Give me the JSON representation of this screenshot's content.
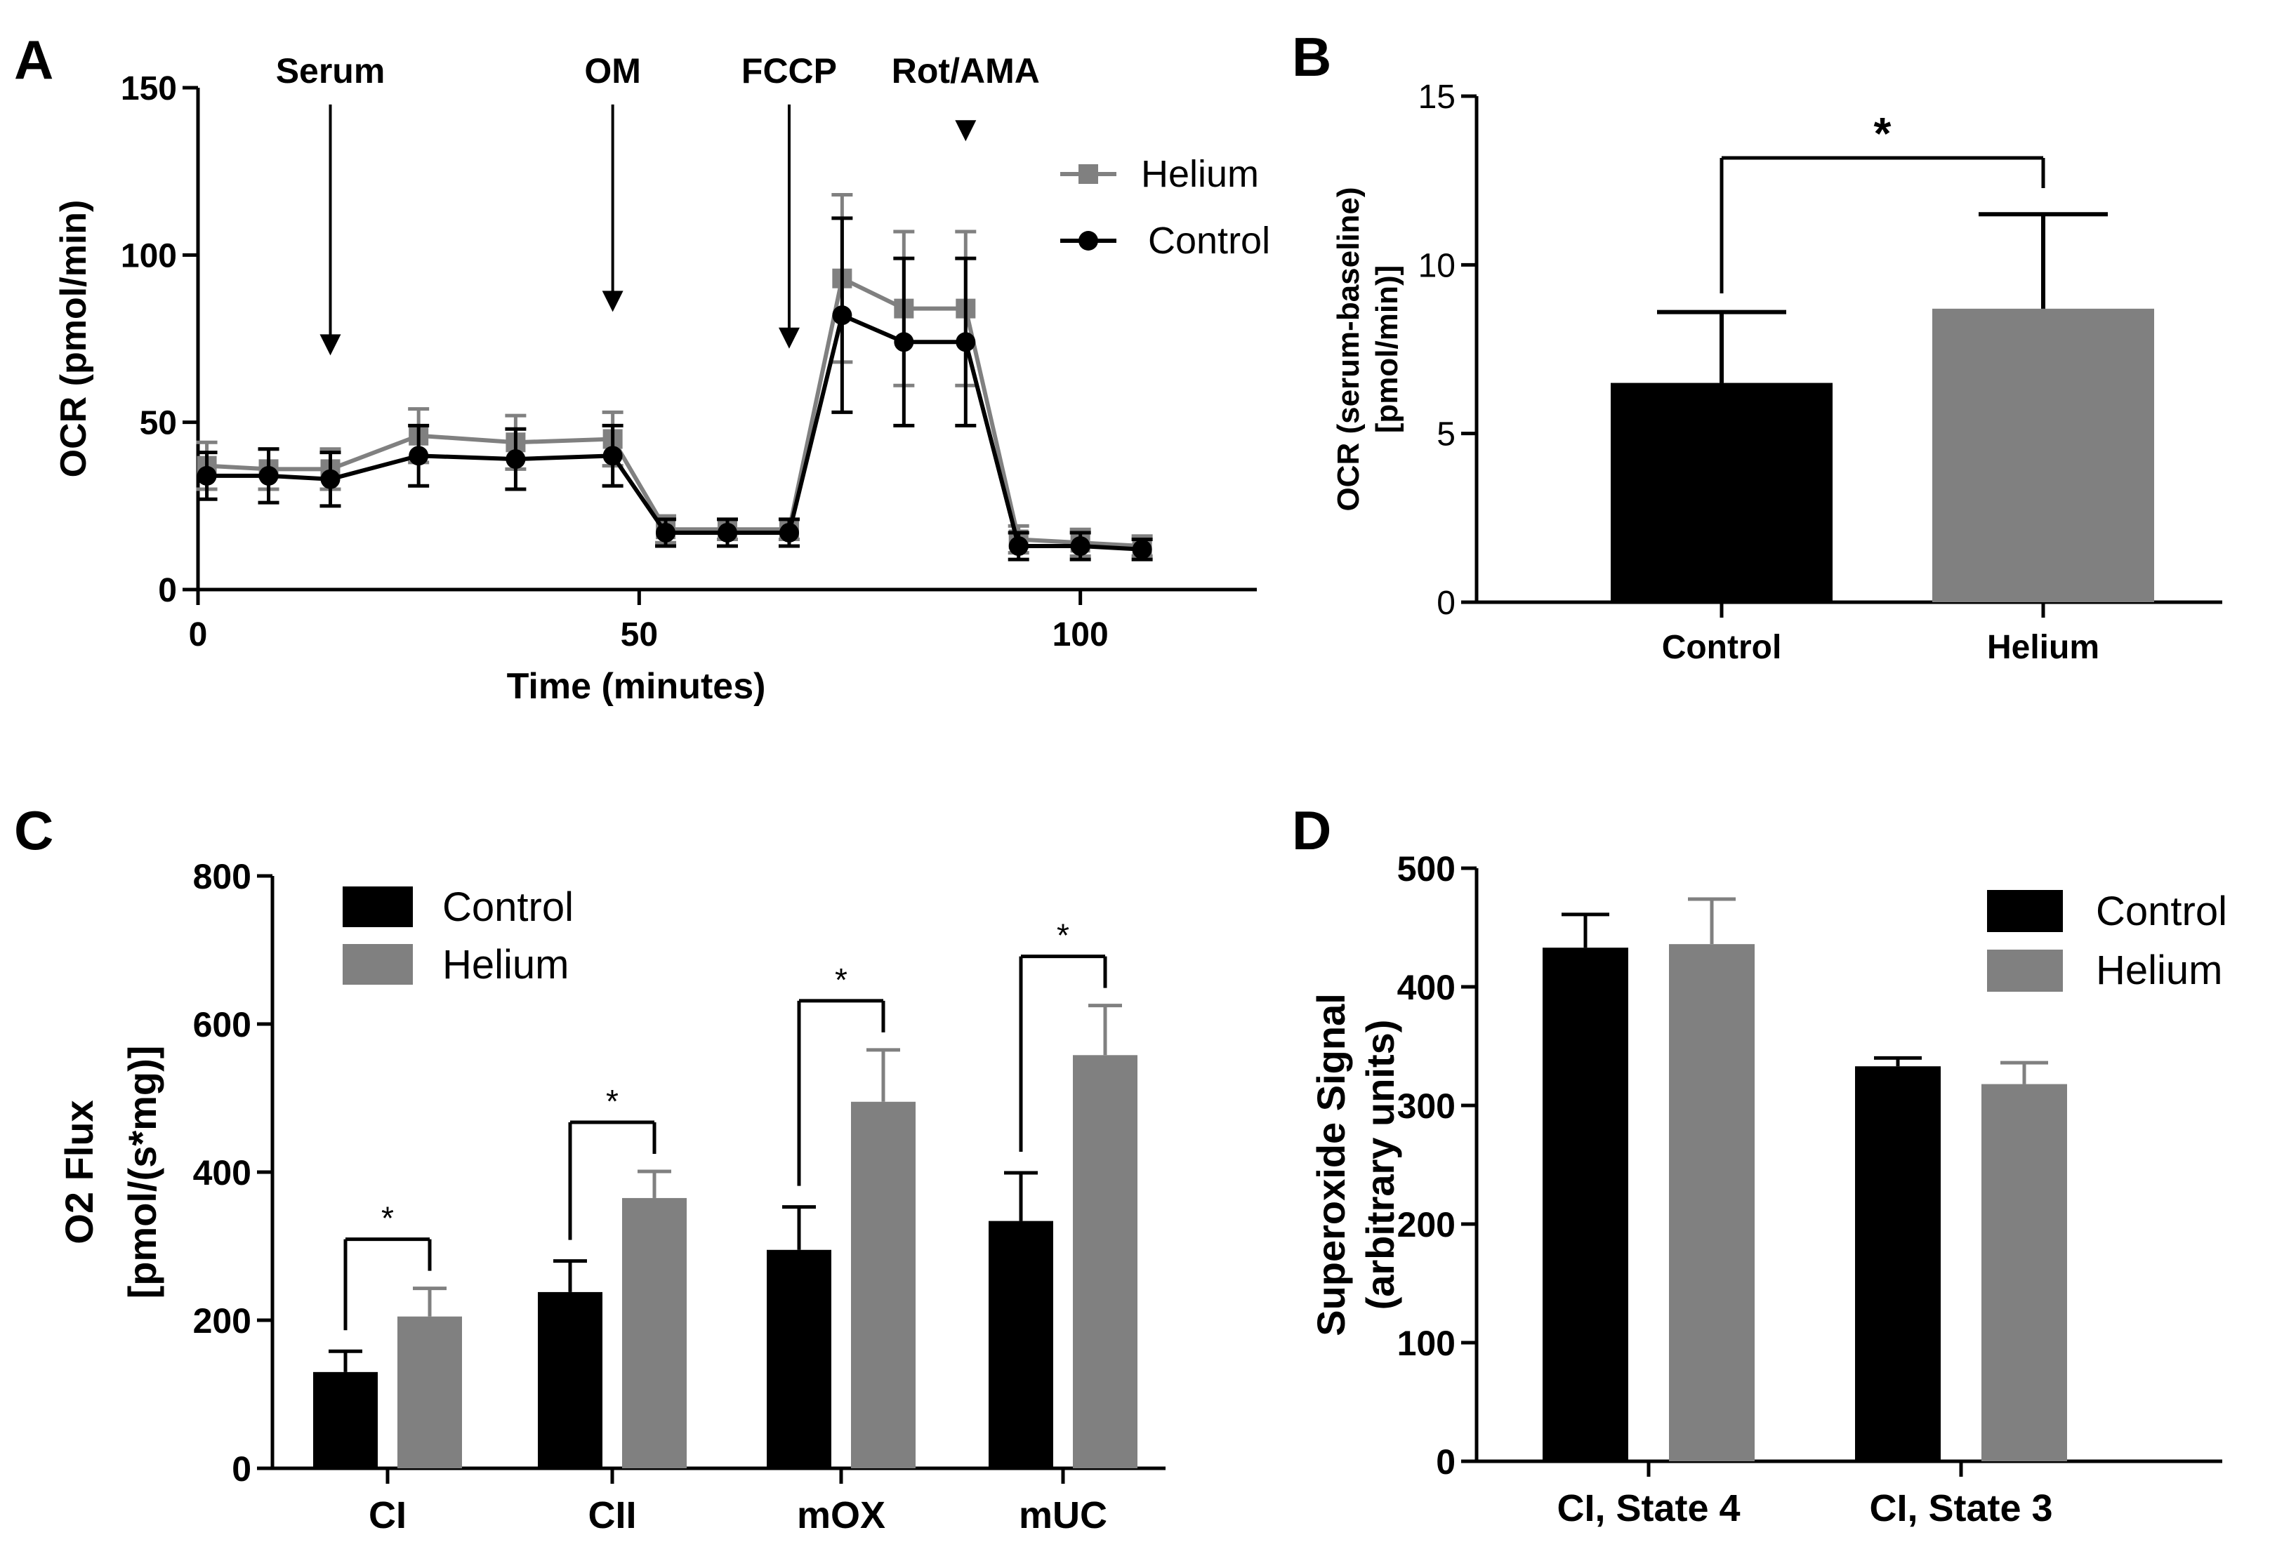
{
  "colors": {
    "control": "#000000",
    "helium": "#808080",
    "axis": "#000000",
    "background": "#ffffff"
  },
  "chart_data": [
    {
      "panel": "A",
      "type": "line",
      "title": "",
      "xlabel": "Time (minutes)",
      "ylabel": "OCR (pmol/min)",
      "xlim": [
        0,
        120
      ],
      "ylim": [
        0,
        150
      ],
      "xticks": [
        0,
        50,
        100
      ],
      "yticks": [
        0,
        50,
        100,
        150
      ],
      "legend": "top-right",
      "injections": [
        {
          "label": "Serum",
          "time": 15,
          "arrow_top": 145,
          "arrow_tip": 70
        },
        {
          "label": "OM",
          "time": 47,
          "arrow_top": 145,
          "arrow_tip": 83
        },
        {
          "label": "FCCP",
          "time": 67,
          "arrow_top": 145,
          "arrow_tip": 72
        },
        {
          "label": "Rot/AMA",
          "time": 87,
          "arrow_top": 140,
          "arrow_tip": 134
        }
      ],
      "x": [
        1,
        8,
        15,
        25,
        36,
        47,
        53,
        60,
        67,
        73,
        80,
        87,
        93,
        100,
        107
      ],
      "series": [
        {
          "name": "Helium",
          "marker": "square",
          "values": [
            37,
            36,
            36,
            46,
            44,
            45,
            18,
            18,
            18,
            93,
            84,
            84,
            15,
            14,
            13
          ],
          "errors": [
            7,
            6,
            6,
            8,
            8,
            8,
            4,
            3,
            3,
            25,
            23,
            23,
            4,
            4,
            3
          ]
        },
        {
          "name": "Control",
          "marker": "circle",
          "values": [
            34,
            34,
            33,
            40,
            39,
            40,
            17,
            17,
            17,
            82,
            74,
            74,
            13,
            13,
            12
          ],
          "errors": [
            7,
            8,
            8,
            9,
            9,
            9,
            4,
            4,
            4,
            29,
            25,
            25,
            4,
            4,
            3
          ]
        }
      ]
    },
    {
      "panel": "B",
      "type": "bar",
      "title": "",
      "xlabel": "",
      "ylabel_lines": [
        "OCR (serum-baseline)",
        "[pmol/min)]"
      ],
      "ylim": [
        0,
        15
      ],
      "yticks": [
        0,
        5,
        10,
        15
      ],
      "categories": [
        "Control",
        "Helium"
      ],
      "values": [
        6.5,
        8.7
      ],
      "errors": [
        2.1,
        2.8
      ],
      "significance": [
        {
          "from": 0,
          "to": 1,
          "label": "*"
        }
      ]
    },
    {
      "panel": "C",
      "type": "bar",
      "title": "",
      "xlabel": "",
      "ylabel_lines": [
        "O2 Flux",
        "[pmol/(s*mg)]"
      ],
      "ylim": [
        0,
        800
      ],
      "yticks": [
        0,
        200,
        400,
        600,
        800
      ],
      "legend": "top-left",
      "categories": [
        "CI",
        "CII",
        "mOX",
        "mUC"
      ],
      "series": [
        {
          "name": "Control",
          "values": [
            130,
            238,
            295,
            334
          ],
          "errors": [
            28,
            42,
            58,
            65
          ]
        },
        {
          "name": "Helium",
          "values": [
            205,
            365,
            495,
            558
          ],
          "errors": [
            38,
            36,
            70,
            67
          ]
        }
      ],
      "significance_label": "*"
    },
    {
      "panel": "D",
      "type": "bar",
      "title": "",
      "xlabel": "",
      "ylabel_lines": [
        "Superoxide Signal",
        "(arbitrary units)"
      ],
      "ylim": [
        0,
        500
      ],
      "yticks": [
        0,
        100,
        200,
        300,
        400,
        500
      ],
      "legend": "top-right",
      "categories": [
        "CI, State 4",
        "CI, State 3"
      ],
      "series": [
        {
          "name": "Control",
          "values": [
            433,
            333
          ],
          "errors": [
            28,
            7
          ]
        },
        {
          "name": "Helium",
          "values": [
            436,
            318
          ],
          "errors": [
            38,
            18
          ]
        }
      ]
    }
  ]
}
